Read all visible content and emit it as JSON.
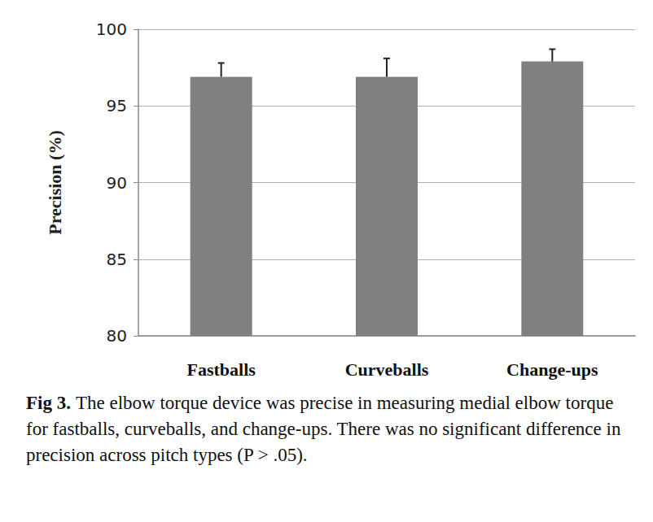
{
  "chart_data": {
    "type": "bar",
    "y_label": "Precision (%)",
    "categories": [
      "Fastballs",
      "Curveballs",
      "Change-ups"
    ],
    "values": [
      96.9,
      96.9,
      97.9
    ],
    "errors": [
      0.9,
      1.2,
      0.8
    ],
    "color": "#808080",
    "ylim": [
      80,
      100
    ],
    "yticks": [
      80,
      85,
      90,
      95,
      100
    ],
    "grid": true,
    "caption": {
      "label": "Fig 3.",
      "text": "The elbow torque device was precise in measuring medial elbow torque for fastballs, curveballs, and change-ups. There was no significant difference in precision across pitch types (P > .05)."
    }
  }
}
